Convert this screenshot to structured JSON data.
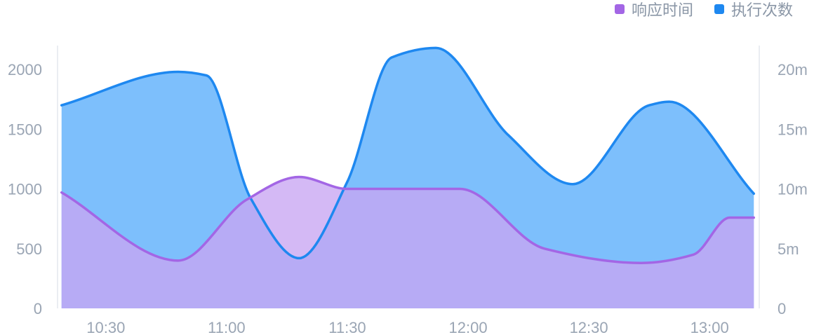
{
  "chart_data": {
    "type": "area",
    "title": "",
    "legend_position": "top-right",
    "x_categories": [
      "10:30",
      "11:00",
      "11:30",
      "12:00",
      "12:30",
      "13:00"
    ],
    "x_range": [
      "10:18",
      "13:12"
    ],
    "left_axis": {
      "ticks": [
        "0",
        "500",
        "1000",
        "1500",
        "2000"
      ],
      "range": [
        0,
        2200
      ]
    },
    "right_axis": {
      "ticks": [
        "0",
        "5m",
        "10m",
        "15m",
        "20m"
      ],
      "range": [
        0,
        22
      ]
    },
    "series": [
      {
        "name": "执行次数",
        "axis": "left",
        "color": "#1e88f0",
        "fill": "#7dbffc",
        "points": [
          {
            "t": "10:19",
            "v": 1700
          },
          {
            "t": "10:48",
            "v": 1980
          },
          {
            "t": "10:55",
            "v": 1950
          },
          {
            "t": "11:06",
            "v": 920
          },
          {
            "t": "11:18",
            "v": 420
          },
          {
            "t": "11:30",
            "v": 1060
          },
          {
            "t": "11:41",
            "v": 2100
          },
          {
            "t": "11:52",
            "v": 2180
          },
          {
            "t": "12:10",
            "v": 1450
          },
          {
            "t": "12:26",
            "v": 1040
          },
          {
            "t": "12:45",
            "v": 1700
          },
          {
            "t": "12:50",
            "v": 1730
          },
          {
            "t": "13:11",
            "v": 960
          }
        ]
      },
      {
        "name": "响应时间",
        "axis": "right",
        "color": "#a366e5",
        "fill": "#c8a5f2",
        "points": [
          {
            "t": "10:19",
            "v": 9.7
          },
          {
            "t": "10:48",
            "v": 4.0
          },
          {
            "t": "11:05",
            "v": 9.1
          },
          {
            "t": "11:18",
            "v": 11.0
          },
          {
            "t": "11:30",
            "v": 10.0
          },
          {
            "t": "11:58",
            "v": 10.0
          },
          {
            "t": "12:19",
            "v": 5.0
          },
          {
            "t": "12:43",
            "v": 3.8
          },
          {
            "t": "12:56",
            "v": 4.5
          },
          {
            "t": "13:05",
            "v": 7.6
          },
          {
            "t": "13:11",
            "v": 7.6
          }
        ]
      }
    ]
  }
}
